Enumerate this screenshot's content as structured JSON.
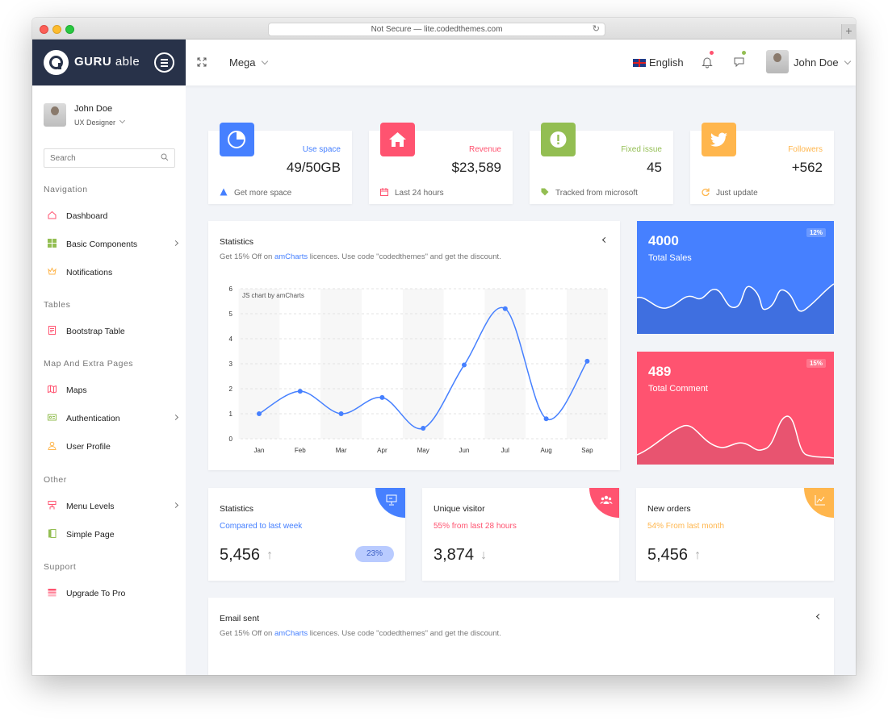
{
  "browser": {
    "url_text": "Not Secure — lite.codedthemes.com"
  },
  "header": {
    "brand_bold": "GURU",
    "brand_light": " able",
    "mega_label": "Mega",
    "language": "English",
    "user_name": "John Doe"
  },
  "sidebar": {
    "user_name": "John Doe",
    "user_role": "UX Designer",
    "search_placeholder": "Search",
    "sections": {
      "navigation": "Navigation",
      "tables": "Tables",
      "map_pages": "Map And Extra Pages",
      "other": "Other",
      "support": "Support"
    },
    "items": {
      "dashboard": "Dashboard",
      "basic_components": "Basic Components",
      "notifications": "Notifications",
      "bootstrap_table": "Bootstrap Table",
      "maps": "Maps",
      "authentication": "Authentication",
      "user_profile": "User Profile",
      "menu_levels": "Menu Levels",
      "simple_page": "Simple Page",
      "upgrade": "Upgrade To Pro"
    }
  },
  "stat_cards": [
    {
      "title": "Use space",
      "value": "49/50GB",
      "footer": "Get more space",
      "color": "#4680ff"
    },
    {
      "title": "Revenue",
      "value": "$23,589",
      "footer": "Last 24 hours",
      "color": "#ff5370"
    },
    {
      "title": "Fixed issue",
      "value": "45",
      "footer": "Tracked from microsoft",
      "color": "#93be52"
    },
    {
      "title": "Followers",
      "value": "+562",
      "footer": "Just update",
      "color": "#ffb64d"
    }
  ],
  "statistics": {
    "title": "Statistics",
    "sub_prefix": "Get 15% Off on ",
    "sub_link": "amCharts",
    "sub_suffix": " licences. Use code \"codedthemes\" and get the discount.",
    "credit": "JS chart by amCharts"
  },
  "chart_data": {
    "type": "line",
    "categories": [
      "Jan",
      "Feb",
      "Mar",
      "Apr",
      "May",
      "Jun",
      "Jul",
      "Aug",
      "Sap"
    ],
    "values": [
      1.0,
      1.9,
      1.0,
      1.65,
      0.42,
      2.95,
      5.2,
      0.8,
      3.1
    ],
    "y_ticks": [
      "0",
      "1",
      "2",
      "3",
      "4",
      "5",
      "6"
    ],
    "ylim": [
      0,
      6
    ],
    "line_color": "#4680ff",
    "grid": true
  },
  "sales_card": {
    "value": "4000",
    "label": "Total Sales",
    "badge": "12%",
    "color": "#4680ff"
  },
  "comment_card": {
    "value": "489",
    "label": "Total Comment",
    "badge": "15%",
    "color": "#ff5370"
  },
  "mini_cards": [
    {
      "title": "Statistics",
      "sub": "Compared to last week",
      "value": "5,456",
      "arrow": "↑",
      "pill": "23%",
      "color": "#4680ff"
    },
    {
      "title": "Unique visitor",
      "sub": "55% from last 28 hours",
      "value": "3,874",
      "arrow": "↓",
      "color": "#ff5370"
    },
    {
      "title": "New orders",
      "sub": "54% From last month",
      "value": "5,456",
      "arrow": "↑",
      "color": "#ffb64d"
    }
  ],
  "email_card": {
    "title": "Email sent",
    "sub_prefix": "Get 15% Off on ",
    "sub_link": "amCharts",
    "sub_suffix": " licences. Use code \"codedthemes\" and get the discount."
  }
}
